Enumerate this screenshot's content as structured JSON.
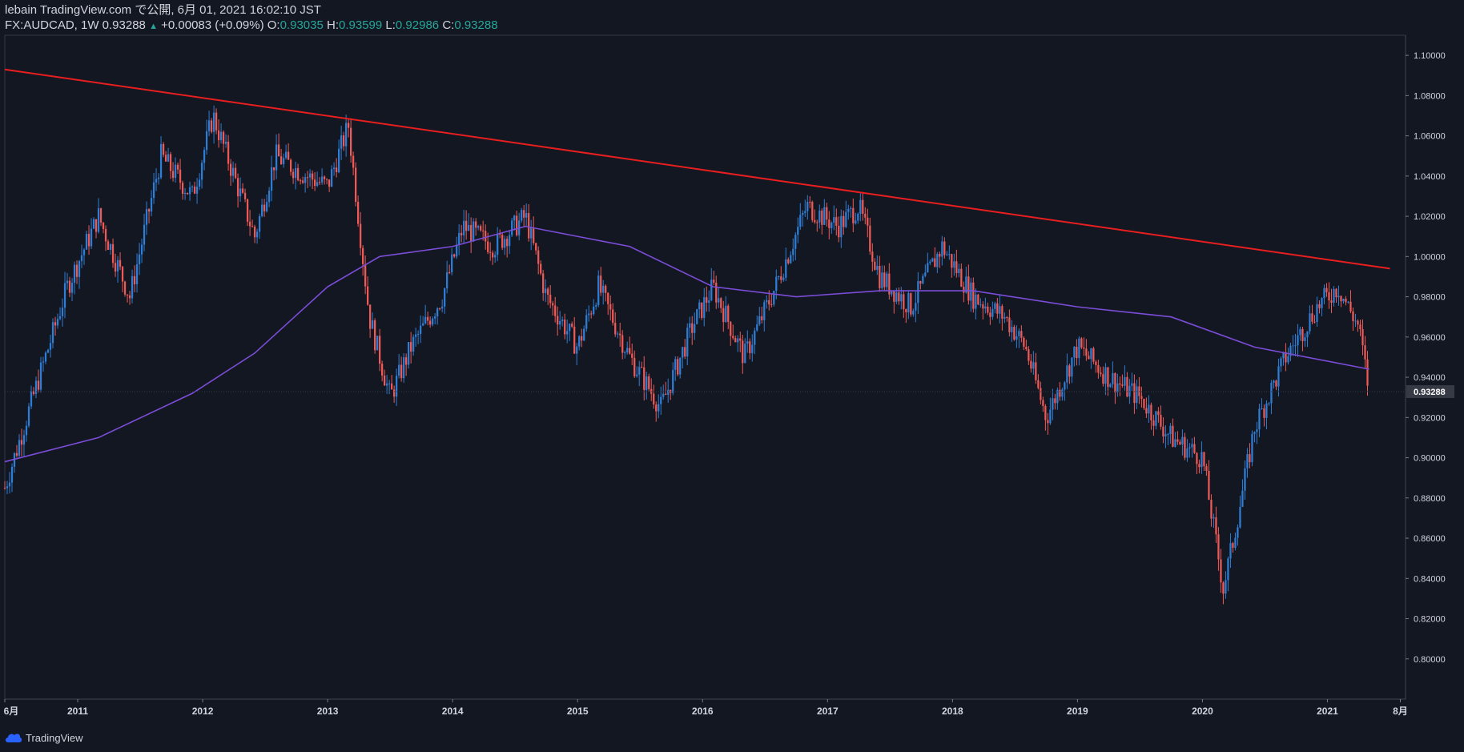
{
  "header": {
    "line1": "lebain TradingView.com で公開, 6月 01, 2021 16:02:10 JST",
    "symbol": "FX:AUDCAD, 1W 0.93288",
    "change_arrow": "▲",
    "change": "+0.00083 (+0.09%)",
    "o_label": "O:",
    "o_value": "0.93035",
    "h_label": "H:",
    "h_value": "0.93599",
    "l_label": "L:",
    "l_value": "0.92986",
    "c_label": "C:",
    "c_value": "0.93288"
  },
  "footer": {
    "brand": "TradingView"
  },
  "colors": {
    "background": "#131722",
    "up": "#2e7ed6",
    "down": "#f05a56",
    "trendline": "#e91e1e",
    "ma": "#7b4dd8",
    "axis_text": "#d1d4dc",
    "price_tag": "#363a45"
  },
  "chart_data": {
    "type": "candlestick",
    "title": "FX:AUDCAD, 1W",
    "xlabel": "",
    "ylabel": "",
    "ylim": [
      0.78,
      1.11
    ],
    "y_ticks": [
      "1.10000",
      "1.08000",
      "1.06000",
      "1.04000",
      "1.02000",
      "1.00000",
      "0.98000",
      "0.96000",
      "0.94000",
      "0.92000",
      "0.90000",
      "0.88000",
      "0.86000",
      "0.84000",
      "0.82000",
      "0.80000"
    ],
    "x_ticks": [
      "6月",
      "2011",
      "2012",
      "2013",
      "2014",
      "2015",
      "2016",
      "2017",
      "2018",
      "2019",
      "2020",
      "2021",
      "8月"
    ],
    "last_price": "0.93288",
    "grid": false,
    "series": [
      {
        "type": "weekly-close",
        "x": [
          "2010-06",
          "2010-09",
          "2010-12",
          "2011-03",
          "2011-06",
          "2011-09",
          "2011-12",
          "2012-02",
          "2012-04",
          "2012-06",
          "2012-08",
          "2012-11",
          "2013-01",
          "2013-03",
          "2013-05",
          "2013-07",
          "2013-09",
          "2013-12",
          "2014-02",
          "2014-05",
          "2014-08",
          "2014-10",
          "2015-01",
          "2015-03",
          "2015-06",
          "2015-09",
          "2015-12",
          "2016-02",
          "2016-05",
          "2016-08",
          "2016-11",
          "2017-02",
          "2017-04",
          "2017-06",
          "2017-09",
          "2017-12",
          "2018-03",
          "2018-06",
          "2018-08",
          "2018-10",
          "2019-01",
          "2019-04",
          "2019-07",
          "2019-10",
          "2020-01",
          "2020-03",
          "2020-04",
          "2020-06",
          "2020-09",
          "2020-12",
          "2021-02",
          "2021-04",
          "2021-05"
        ],
        "values": [
          0.885,
          0.935,
          0.985,
          1.02,
          0.98,
          1.05,
          1.03,
          1.07,
          1.04,
          1.01,
          1.05,
          1.04,
          1.035,
          1.065,
          0.97,
          0.93,
          0.955,
          0.98,
          1.015,
          1.005,
          1.02,
          0.98,
          0.955,
          0.985,
          0.95,
          0.925,
          0.965,
          0.985,
          0.95,
          0.985,
          1.025,
          1.015,
          1.025,
          0.99,
          0.975,
          1.005,
          0.98,
          0.97,
          0.955,
          0.92,
          0.955,
          0.94,
          0.93,
          0.91,
          0.9,
          0.835,
          0.86,
          0.915,
          0.95,
          0.975,
          0.985,
          0.965,
          0.933
        ]
      },
      {
        "type": "line",
        "x": [
          "2010-06",
          "2011-03",
          "2011-12",
          "2012-06",
          "2013-01",
          "2013-06",
          "2014-01",
          "2014-08",
          "2015-06",
          "2016-02",
          "2016-10",
          "2017-06",
          "2018-03",
          "2019-01",
          "2019-10",
          "2020-06",
          "2021-05"
        ],
        "values": [
          0.898,
          0.91,
          0.932,
          0.952,
          0.985,
          1.0,
          1.005,
          1.015,
          1.005,
          0.985,
          0.98,
          0.983,
          0.983,
          0.975,
          0.97,
          0.955,
          0.944
        ]
      },
      {
        "type": "trendline",
        "x": [
          "2010-06",
          "2021-07"
        ],
        "values": [
          1.093,
          0.994
        ]
      }
    ]
  }
}
